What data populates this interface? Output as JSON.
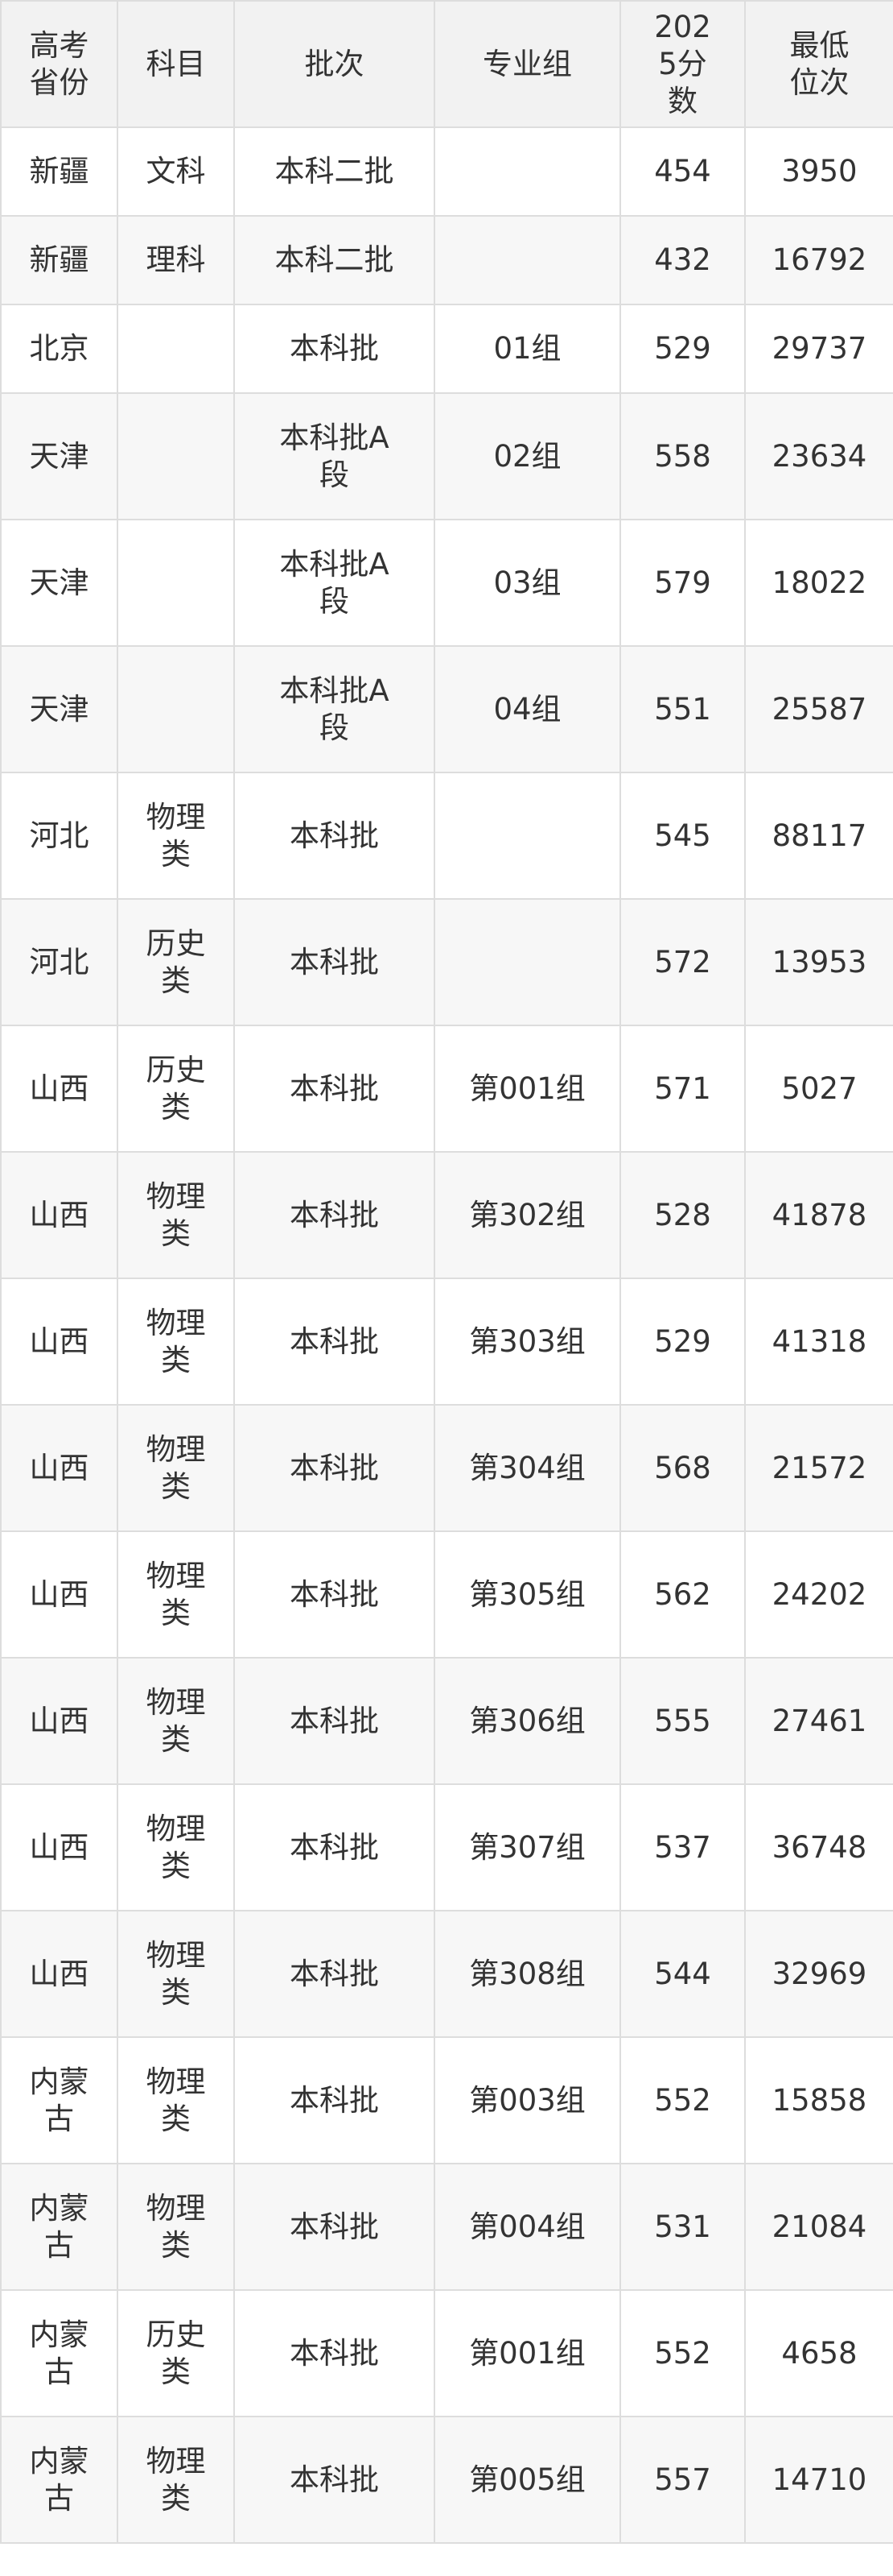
{
  "table": {
    "header": [
      "高考省份",
      "科目",
      "批次",
      "专业组",
      "2025分数",
      "最低位次"
    ],
    "rows": [
      [
        "新疆",
        "文科",
        "本科二批",
        null,
        "454",
        "3950"
      ],
      [
        "新疆",
        "理科",
        "本科二批",
        null,
        "432",
        "16792"
      ],
      [
        "北京",
        null,
        "本科批",
        "01组",
        "529",
        "29737"
      ],
      [
        "天津",
        null,
        "本科批A段",
        "02组",
        "558",
        "23634"
      ],
      [
        "天津",
        null,
        "本科批A段",
        "03组",
        "579",
        "18022"
      ],
      [
        "天津",
        null,
        "本科批A段",
        "04组",
        "551",
        "25587"
      ],
      [
        "河北",
        "物理类",
        "本科批",
        null,
        "545",
        "88117"
      ],
      [
        "河北",
        "历史类",
        "本科批",
        null,
        "572",
        "13953"
      ],
      [
        "山西",
        "历史类",
        "本科批",
        "第001组",
        "571",
        "5027"
      ],
      [
        "山西",
        "物理类",
        "本科批",
        "第302组",
        "528",
        "41878"
      ],
      [
        "山西",
        "物理类",
        "本科批",
        "第303组",
        "529",
        "41318"
      ],
      [
        "山西",
        "物理类",
        "本科批",
        "第304组",
        "568",
        "21572"
      ],
      [
        "山西",
        "物理类",
        "本科批",
        "第305组",
        "562",
        "24202"
      ],
      [
        "山西",
        "物理类",
        "本科批",
        "第306组",
        "555",
        "27461"
      ],
      [
        "山西",
        "物理类",
        "本科批",
        "第307组",
        "537",
        "36748"
      ],
      [
        "山西",
        "物理类",
        "本科批",
        "第308组",
        "544",
        "32969"
      ],
      [
        "内蒙古",
        "物理类",
        "本科批",
        "第003组",
        "552",
        "15858"
      ],
      [
        "内蒙古",
        "物理类",
        "本科批",
        "第004组",
        "531",
        "21084"
      ],
      [
        "内蒙古",
        "历史类",
        "本科批",
        "第001组",
        "552",
        "4658"
      ],
      [
        "内蒙古",
        "物理类",
        "本科批",
        "第005组",
        "557",
        "14710"
      ]
    ]
  }
}
